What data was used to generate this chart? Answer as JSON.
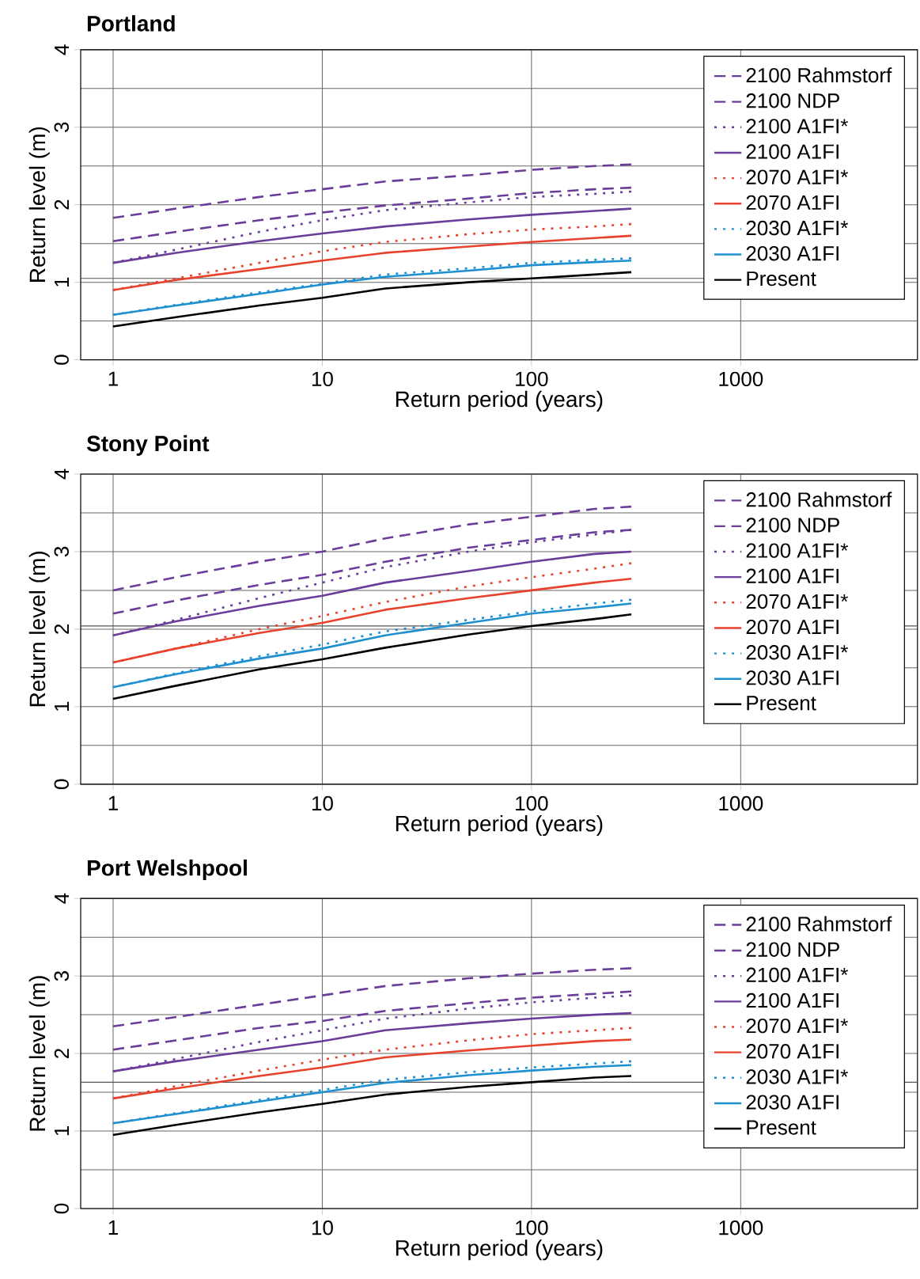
{
  "chart_data": [
    {
      "type": "line",
      "title": "Portland",
      "xlabel": "Return period (years)",
      "ylabel": "Return level (m)",
      "log": "x",
      "grid": true,
      "legend": "top right",
      "x": [
        1,
        2,
        5,
        10,
        20,
        50,
        100,
        200,
        300
      ],
      "xlim": [
        0.7,
        7000
      ],
      "ylim": [
        0,
        4
      ],
      "xticks": [
        1,
        10,
        100,
        1000
      ],
      "yticks": [
        0,
        1,
        2,
        3,
        4
      ],
      "ref_lines": [
        {
          "axis": "y",
          "value": 1.05,
          "color": "#555555"
        }
      ],
      "series": [
        {
          "name": "2100 Rahmstorf",
          "color": "#6a3d9a",
          "line_style": "dashed",
          "values": [
            1.83,
            1.95,
            2.1,
            2.2,
            2.3,
            2.38,
            2.45,
            2.5,
            2.52
          ]
        },
        {
          "name": "2100 NDP",
          "color": "#6a3d9a",
          "line_style": "dashed",
          "values": [
            1.53,
            1.65,
            1.8,
            1.9,
            1.99,
            2.08,
            2.15,
            2.2,
            2.22
          ]
        },
        {
          "name": "2100 A1FI*",
          "color": "#6a3d9a",
          "line_style": "dotted",
          "values": [
            1.25,
            1.42,
            1.65,
            1.8,
            1.93,
            2.03,
            2.1,
            2.14,
            2.17
          ]
        },
        {
          "name": "2100 A1FI",
          "color": "#6a3d9a",
          "line_style": "solid",
          "values": [
            1.25,
            1.38,
            1.53,
            1.63,
            1.72,
            1.81,
            1.87,
            1.92,
            1.95
          ]
        },
        {
          "name": "2070 A1FI*",
          "color": "#e8412c",
          "line_style": "dotted",
          "values": [
            0.9,
            1.05,
            1.25,
            1.4,
            1.52,
            1.62,
            1.68,
            1.72,
            1.75
          ]
        },
        {
          "name": "2070 A1FI",
          "color": "#e8412c",
          "line_style": "solid",
          "values": [
            0.9,
            1.03,
            1.17,
            1.28,
            1.38,
            1.46,
            1.52,
            1.57,
            1.6
          ]
        },
        {
          "name": "2030 A1FI*",
          "color": "#1e90d0",
          "line_style": "dotted",
          "values": [
            0.58,
            0.71,
            0.87,
            0.98,
            1.1,
            1.18,
            1.25,
            1.29,
            1.31
          ]
        },
        {
          "name": "2030 A1FI",
          "color": "#1e90d0",
          "line_style": "solid",
          "values": [
            0.58,
            0.7,
            0.85,
            0.97,
            1.07,
            1.15,
            1.22,
            1.26,
            1.28
          ]
        },
        {
          "name": "Present",
          "color": "#000000",
          "line_style": "solid",
          "values": [
            0.43,
            0.55,
            0.7,
            0.8,
            0.92,
            1.0,
            1.05,
            1.1,
            1.13
          ]
        }
      ]
    },
    {
      "type": "line",
      "title": "Stony Point",
      "xlabel": "Return period (years)",
      "ylabel": "Return level (m)",
      "log": "x",
      "grid": true,
      "legend": "top right",
      "x": [
        1,
        2,
        5,
        10,
        20,
        50,
        100,
        200,
        300
      ],
      "xlim": [
        0.7,
        7000
      ],
      "ylim": [
        0,
        4
      ],
      "xticks": [
        1,
        10,
        100,
        1000
      ],
      "yticks": [
        0,
        1,
        2,
        3,
        4
      ],
      "ref_lines": [
        {
          "axis": "y",
          "value": 2.04,
          "color": "#555555"
        }
      ],
      "series": [
        {
          "name": "2100 Rahmstorf",
          "color": "#6a3d9a",
          "line_style": "dashed",
          "values": [
            2.5,
            2.67,
            2.87,
            3.0,
            3.17,
            3.35,
            3.45,
            3.55,
            3.58
          ]
        },
        {
          "name": "2100 NDP",
          "color": "#6a3d9a",
          "line_style": "dashed",
          "values": [
            2.2,
            2.37,
            2.57,
            2.7,
            2.87,
            3.05,
            3.15,
            3.25,
            3.28
          ]
        },
        {
          "name": "2100 A1FI*",
          "color": "#6a3d9a",
          "line_style": "dotted",
          "values": [
            1.92,
            2.12,
            2.4,
            2.6,
            2.8,
            3.0,
            3.12,
            3.22,
            3.28
          ]
        },
        {
          "name": "2100 A1FI",
          "color": "#6a3d9a",
          "line_style": "solid",
          "values": [
            1.92,
            2.1,
            2.3,
            2.43,
            2.6,
            2.75,
            2.87,
            2.97,
            3.0
          ]
        },
        {
          "name": "2070 A1FI*",
          "color": "#e8412c",
          "line_style": "dotted",
          "values": [
            1.57,
            1.75,
            2.0,
            2.17,
            2.35,
            2.55,
            2.67,
            2.78,
            2.85
          ]
        },
        {
          "name": "2070 A1FI",
          "color": "#e8412c",
          "line_style": "solid",
          "values": [
            1.57,
            1.75,
            1.95,
            2.08,
            2.25,
            2.4,
            2.5,
            2.6,
            2.65
          ]
        },
        {
          "name": "2030 A1FI*",
          "color": "#1e90d0",
          "line_style": "dotted",
          "values": [
            1.25,
            1.43,
            1.65,
            1.8,
            1.97,
            2.12,
            2.23,
            2.33,
            2.38
          ]
        },
        {
          "name": "2030 A1FI",
          "color": "#1e90d0",
          "line_style": "solid",
          "values": [
            1.25,
            1.42,
            1.62,
            1.75,
            1.92,
            2.08,
            2.2,
            2.28,
            2.33
          ]
        },
        {
          "name": "Present",
          "color": "#000000",
          "line_style": "solid",
          "values": [
            1.1,
            1.27,
            1.48,
            1.61,
            1.76,
            1.93,
            2.04,
            2.13,
            2.19
          ]
        }
      ]
    },
    {
      "type": "line",
      "title": "Port Welshpool",
      "xlabel": "Return period (years)",
      "ylabel": "Return level (m)",
      "log": "x",
      "grid": true,
      "legend": "top right",
      "x": [
        1,
        2,
        5,
        10,
        20,
        50,
        100,
        200,
        300
      ],
      "xlim": [
        0.7,
        7000
      ],
      "ylim": [
        0,
        4
      ],
      "xticks": [
        1,
        10,
        100,
        1000
      ],
      "yticks": [
        0,
        1,
        2,
        3,
        4
      ],
      "ref_lines": [
        {
          "axis": "y",
          "value": 1.63,
          "color": "#555555"
        }
      ],
      "series": [
        {
          "name": "2100 Rahmstorf",
          "color": "#6a3d9a",
          "line_style": "dashed",
          "values": [
            2.35,
            2.47,
            2.63,
            2.75,
            2.87,
            2.97,
            3.03,
            3.08,
            3.1
          ]
        },
        {
          "name": "2100 NDP",
          "color": "#6a3d9a",
          "line_style": "dashed",
          "values": [
            2.05,
            2.17,
            2.33,
            2.42,
            2.55,
            2.65,
            2.72,
            2.77,
            2.8
          ]
        },
        {
          "name": "2100 A1FI*",
          "color": "#6a3d9a",
          "line_style": "dotted",
          "values": [
            1.77,
            1.93,
            2.15,
            2.3,
            2.45,
            2.58,
            2.66,
            2.72,
            2.75
          ]
        },
        {
          "name": "2100 A1FI",
          "color": "#6a3d9a",
          "line_style": "solid",
          "values": [
            1.77,
            1.9,
            2.05,
            2.16,
            2.3,
            2.39,
            2.45,
            2.5,
            2.52
          ]
        },
        {
          "name": "2070 A1FI*",
          "color": "#e8412c",
          "line_style": "dotted",
          "values": [
            1.42,
            1.58,
            1.78,
            1.92,
            2.05,
            2.17,
            2.25,
            2.3,
            2.33
          ]
        },
        {
          "name": "2070 A1FI",
          "color": "#e8412c",
          "line_style": "solid",
          "values": [
            1.42,
            1.55,
            1.71,
            1.82,
            1.95,
            2.04,
            2.1,
            2.16,
            2.18
          ]
        },
        {
          "name": "2030 A1FI*",
          "color": "#1e90d0",
          "line_style": "dotted",
          "values": [
            1.1,
            1.23,
            1.4,
            1.53,
            1.66,
            1.76,
            1.82,
            1.87,
            1.9
          ]
        },
        {
          "name": "2030 A1FI",
          "color": "#1e90d0",
          "line_style": "solid",
          "values": [
            1.1,
            1.22,
            1.38,
            1.5,
            1.62,
            1.72,
            1.78,
            1.83,
            1.85
          ]
        },
        {
          "name": "Present",
          "color": "#000000",
          "line_style": "solid",
          "values": [
            0.95,
            1.08,
            1.24,
            1.35,
            1.47,
            1.57,
            1.63,
            1.69,
            1.71
          ]
        }
      ]
    }
  ]
}
